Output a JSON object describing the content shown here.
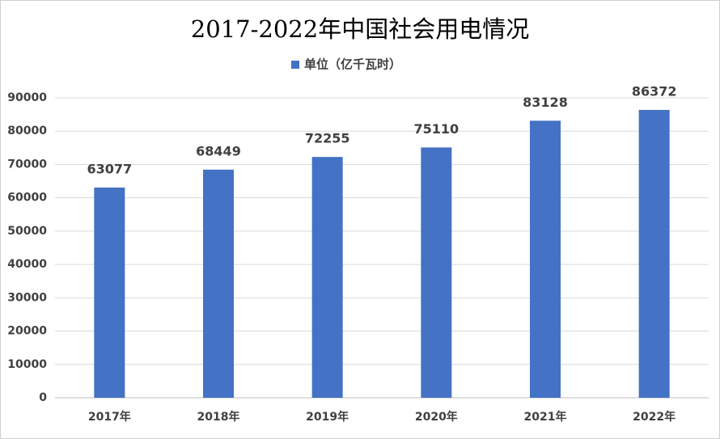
{
  "chart_data": {
    "type": "bar",
    "title": "2017-2022年中国社会用电情况",
    "categories": [
      "2017年",
      "2018年",
      "2019年",
      "2020年",
      "2021年",
      "2022年"
    ],
    "series": [
      {
        "name": "单位（亿千瓦时）",
        "color": "#4472c4",
        "values": [
          63077,
          68449,
          72255,
          75110,
          83128,
          86372
        ]
      }
    ],
    "ylim": [
      0,
      90000
    ],
    "yticks": [
      0,
      10000,
      20000,
      30000,
      40000,
      50000,
      60000,
      70000,
      80000,
      90000
    ],
    "grid": true,
    "legend": "top"
  }
}
